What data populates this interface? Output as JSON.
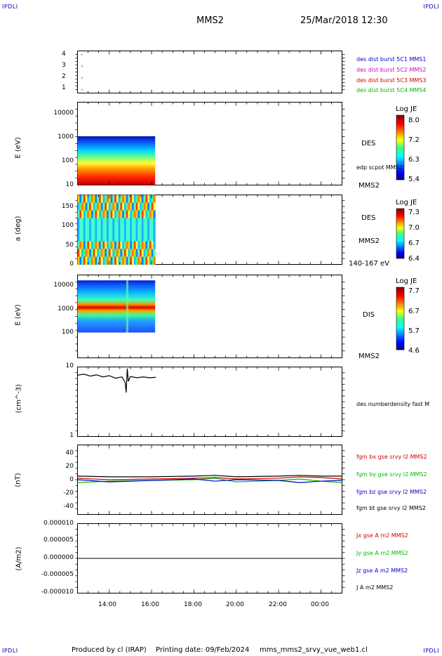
{
  "header": {
    "corner_tl": "IPDLI",
    "corner_tr": "IPDLI",
    "corner_bl": "IPDLI",
    "corner_br": "IPDLI",
    "spacecraft": "MMS2",
    "datetime": "25/Mar/2018 12:30"
  },
  "footer": {
    "produced_by": "Produced by cl (IRAP)",
    "printing_date": "Printing date: 09/Feb/2024",
    "filename": "mms_mms2_srvy_vue_web1.cl"
  },
  "colors": {
    "blue": "#0000cc",
    "magenta": "#cc00cc",
    "red": "#cc0000",
    "green": "#00bb00",
    "black": "#000000"
  },
  "chart_data": [
    {
      "type": "scatter",
      "ytick_labels": [
        "1",
        "2",
        "3",
        "4"
      ],
      "ylim": [
        0.7,
        4.3
      ],
      "points": [
        {
          "t": 12.7,
          "y": 4.0
        },
        {
          "t": 12.72,
          "y": 3.0
        },
        {
          "t": 12.71,
          "y": 2.0
        },
        {
          "t": 12.72,
          "y": 1.0
        }
      ],
      "legend": [
        {
          "text": "des dist burst 5C1 MMS1",
          "color": "#0000cc"
        },
        {
          "text": "des dist burst 5C2 MMS2",
          "color": "#cc00cc"
        },
        {
          "text": "des dist burst 5C3 MMS3",
          "color": "#cc0000"
        },
        {
          "text": "des dist burst 5C4 MMS4",
          "color": "#00bb00"
        }
      ]
    },
    {
      "type": "heatmap",
      "ylabel": "E (eV)",
      "ytick_labels": [
        "10",
        "100",
        "1000",
        "10000"
      ],
      "log_y": true,
      "ylim": [
        10,
        25000
      ],
      "data_time_range": [
        "12:30",
        "16:10"
      ],
      "data_energy_range": [
        10,
        1000
      ],
      "right_label": "DES",
      "right_label2": "edp scpot MMS2",
      "right_label3": "MMS2",
      "colorbar": {
        "title": "Log JE",
        "ticks": [
          "8.0",
          "7.2",
          "6.3",
          "5.4"
        ]
      }
    },
    {
      "type": "heatmap",
      "ylabel": "a (deg)",
      "ytick_labels": [
        "0",
        "50",
        "100",
        "150"
      ],
      "ylim": [
        0,
        180
      ],
      "data_time_range": [
        "12:30",
        "16:10"
      ],
      "right_label": "DES",
      "right_label2": "MMS2",
      "right_label3": "140-167 eV",
      "colorbar": {
        "title": "Log JE",
        "ticks": [
          "7.3",
          "7.0",
          "6.7",
          "6.4"
        ]
      }
    },
    {
      "type": "heatmap",
      "ylabel": "E (eV)",
      "ytick_labels": [
        "100",
        "1000",
        "10000"
      ],
      "log_y": true,
      "ylim": [
        30,
        15000
      ],
      "data_time_range": [
        "12:30",
        "16:10"
      ],
      "data_energy_range": [
        200,
        10000
      ],
      "right_label": "DIS",
      "right_label2": "MMS2",
      "colorbar": {
        "title": "Log JE",
        "ticks": [
          "7.7",
          "6.7",
          "5.7",
          "4.6"
        ]
      }
    },
    {
      "type": "line",
      "ylabel": "(cm^-3)",
      "ytick_labels": [
        "1",
        "10"
      ],
      "log_y": true,
      "ylim": [
        1,
        10
      ],
      "legend": [
        {
          "text": "des numberdensity fast M",
          "color": "#000000"
        }
      ],
      "series": [
        {
          "t": [
            12.5,
            12.8,
            13.1,
            13.4,
            13.7,
            14.0,
            14.3,
            14.6,
            14.75,
            14.8,
            14.85,
            14.9,
            15.0,
            15.3,
            15.6,
            15.9,
            16.2
          ],
          "y": [
            7.6,
            7.9,
            7.4,
            7.7,
            7.2,
            7.5,
            6.9,
            7.2,
            6.0,
            4.3,
            9.5,
            6.2,
            7.3,
            7.0,
            7.2,
            7.0,
            7.1
          ]
        }
      ]
    },
    {
      "type": "line",
      "ylabel": "(nT)",
      "ytick_labels": [
        "-40",
        "-20",
        "0",
        "20",
        "40"
      ],
      "ylim": [
        -48,
        48
      ],
      "legend": [
        {
          "text": "fgm bx gse srvy l2 MMS2",
          "color": "#cc0000"
        },
        {
          "text": "fgm by gse srvy l2 MMS2",
          "color": "#00bb00"
        },
        {
          "text": "fgm bz gse srvy l2 MMS2",
          "color": "#0000cc"
        },
        {
          "text": "fgm bt gse srvy l2 MMS2",
          "color": "#000000"
        }
      ],
      "series": [
        {
          "name": "fgm bx gse srvy l2 MMS2",
          "t": [
            12.5,
            14,
            16,
            18,
            19,
            20,
            22,
            23,
            24,
            25.0
          ],
          "y": [
            2,
            0,
            1,
            2,
            3,
            1,
            2,
            4,
            3,
            1
          ]
        },
        {
          "name": "fgm by gse srvy l2 MMS2",
          "t": [
            12.5,
            14,
            16,
            18,
            19,
            20,
            22,
            23,
            24,
            25.0
          ],
          "y": [
            -4,
            -2,
            -1,
            0,
            2,
            -3,
            -1,
            1,
            -2,
            -4
          ]
        },
        {
          "name": "fgm bz gse srvy l2 MMS2",
          "t": [
            12.5,
            14,
            16,
            18,
            19,
            20,
            22,
            23,
            24,
            25.0
          ],
          "y": [
            0,
            -3,
            -1,
            1,
            -2,
            0,
            -1,
            -4,
            -2,
            -1
          ]
        },
        {
          "name": "fgm bt gse srvy l2 MMS2",
          "t": [
            12.5,
            14,
            16,
            18,
            19,
            20,
            22,
            23,
            24,
            25.0
          ],
          "y": [
            5,
            4,
            4,
            5,
            6,
            4,
            5,
            6,
            5,
            5
          ]
        }
      ]
    },
    {
      "type": "line",
      "ylabel": "(A/m2)",
      "ytick_labels": [
        "-0.000010",
        "-0.000005",
        "0.000000",
        "0.000005",
        "0.000010"
      ],
      "ylim": [
        -1e-05,
        1e-05
      ],
      "legend": [
        {
          "text": "Jx gse A m2 MMS2",
          "color": "#cc0000"
        },
        {
          "text": "Jy gse A m2 MMS2",
          "color": "#00bb00"
        },
        {
          "text": "Jz gse A m2 MMS2",
          "color": "#0000cc"
        },
        {
          "text": "J A m2 MMS2",
          "color": "#000000"
        }
      ],
      "series": [
        {
          "name": "J A m2 MMS2",
          "t": [
            12.5,
            25.0
          ],
          "y": [
            0,
            0
          ]
        }
      ]
    }
  ],
  "x_axis": {
    "ticks": [
      "14:00",
      "16:00",
      "18:00",
      "20:00",
      "22:00",
      "00:00"
    ],
    "xlim_hours": [
      12.5,
      25.0
    ]
  }
}
